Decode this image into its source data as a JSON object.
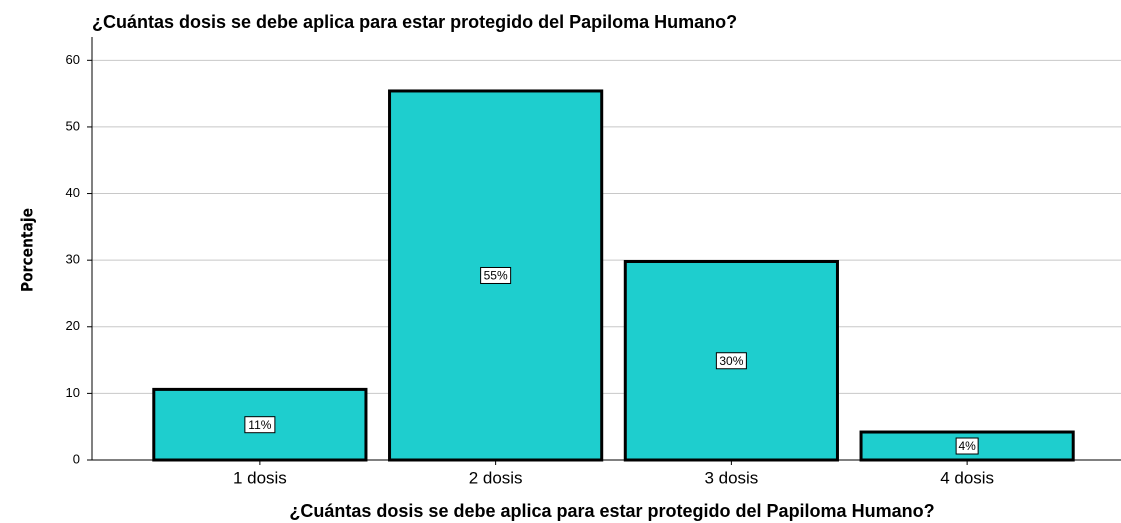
{
  "chart_data": {
    "type": "bar",
    "title": "¿Cuántas dosis se debe aplica para estar protegido del Papiloma Humano?",
    "xlabel": "¿Cuántas dosis se debe aplica para estar protegido del Papiloma Humano?",
    "ylabel": "Porcentaje",
    "categories": [
      "1 dosis",
      "2 dosis",
      "3 dosis",
      "4 dosis"
    ],
    "values": [
      10.6,
      55.4,
      29.8,
      4.2
    ],
    "value_labels": [
      "11%",
      "55%",
      "30%",
      "4%"
    ],
    "color": "#1ecece",
    "ylim": [
      0,
      62
    ],
    "yticks": [
      0,
      10,
      20,
      30,
      40,
      50,
      60
    ],
    "grid": true
  }
}
